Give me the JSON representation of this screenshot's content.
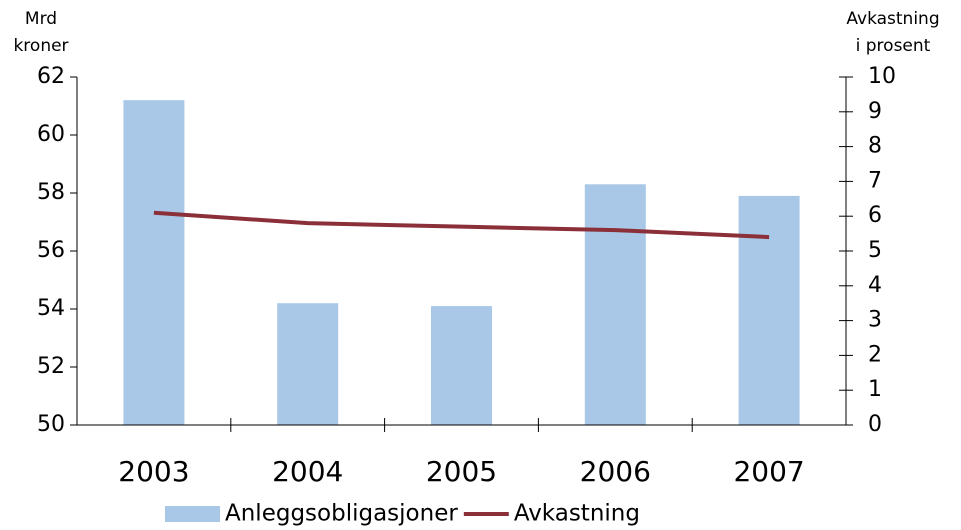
{
  "chart_data": {
    "type": "bar-line",
    "ylabel": [
      "Mrd",
      "kroner"
    ],
    "y2label": [
      "Avkastning",
      "i prosent"
    ],
    "categories": [
      "2003",
      "2004",
      "2005",
      "2006",
      "2007"
    ],
    "series": [
      {
        "name": "Anleggsobligasjoner",
        "type": "bar",
        "color": "#a9c8e8",
        "values": [
          61.2,
          54.2,
          54.1,
          58.3,
          57.9
        ]
      },
      {
        "name": "Avkastning",
        "type": "line",
        "axis": "y2",
        "color": "#8b3039",
        "values": [
          6.1,
          5.8,
          5.7,
          5.6,
          5.4
        ]
      }
    ],
    "ylim": [
      50,
      62
    ],
    "yticks": [
      50,
      52,
      54,
      56,
      58,
      60,
      62
    ],
    "y2lim": [
      0,
      10
    ],
    "y2ticks": [
      0,
      1,
      2,
      3,
      4,
      5,
      6,
      7,
      8,
      9,
      10
    ],
    "legend": "bottom"
  }
}
